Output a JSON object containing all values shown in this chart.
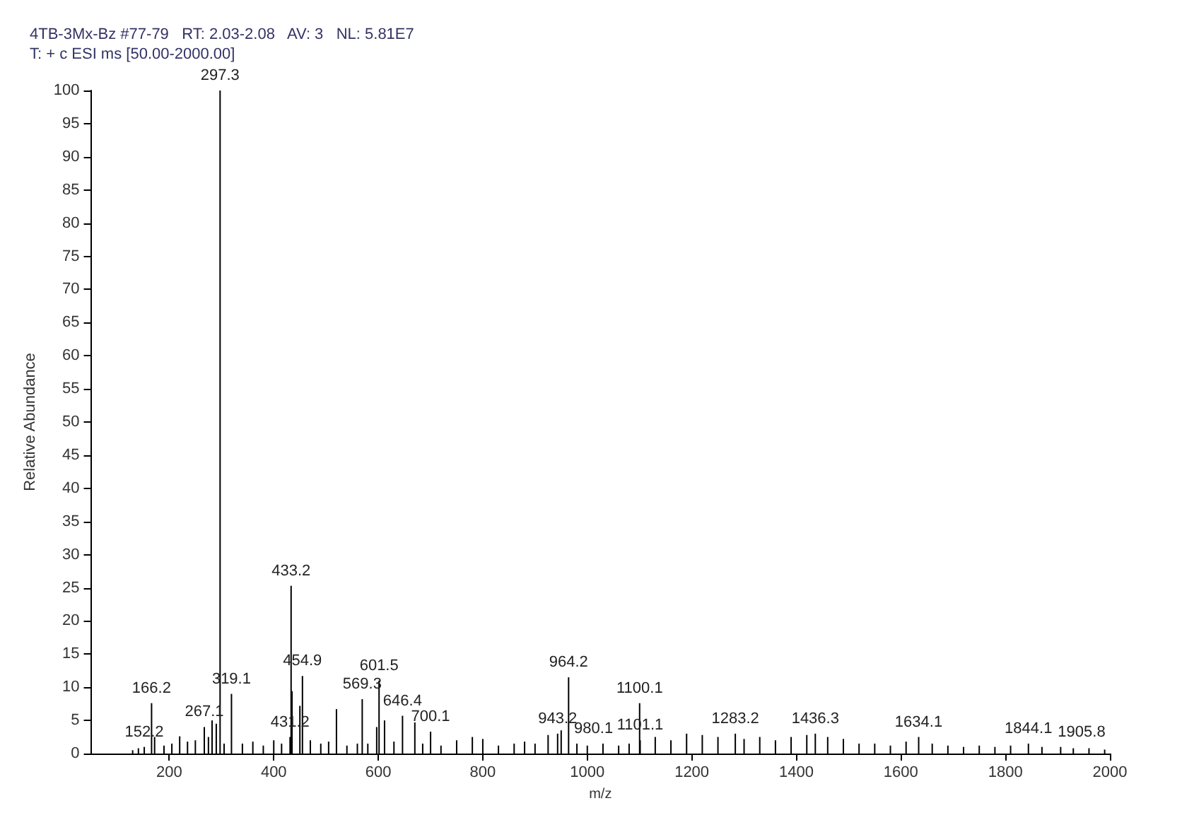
{
  "chart_data": {
    "type": "bar",
    "title": "4TB-3Mx-Bz #77-79   RT: 2.03-2.08   AV: 3   NL: 5.81E7",
    "subtitle": "T: + c ESI ms [50.00-2000.00]",
    "xlabel": "m/z",
    "ylabel": "Relative Abundance",
    "x": [
      130,
      141,
      152.2,
      166.2,
      172,
      190,
      205,
      220,
      235,
      250,
      267.1,
      275,
      282,
      290,
      297.3,
      305,
      319.1,
      340,
      360,
      380,
      400,
      415,
      431.2,
      433.2,
      435,
      450,
      454.9,
      470,
      490,
      505,
      520,
      540,
      560,
      569.3,
      580,
      597,
      601.5,
      612,
      630,
      646.4,
      670,
      685,
      700.1,
      720,
      750,
      780,
      800,
      830,
      860,
      880,
      900,
      925,
      943.2,
      950,
      964.2,
      980.1,
      1000,
      1030,
      1060,
      1080,
      1100.1,
      1101.1,
      1130,
      1160,
      1190,
      1220,
      1250,
      1283.2,
      1300,
      1330,
      1360,
      1390,
      1420,
      1436.3,
      1460,
      1490,
      1520,
      1550,
      1580,
      1610,
      1634.1,
      1660,
      1690,
      1720,
      1750,
      1780,
      1810,
      1844.1,
      1870,
      1905.8,
      1930,
      1960,
      1990
    ],
    "series": [
      {
        "color": "#000000",
        "values": [
          0.5,
          0.8,
          1,
          7.6,
          2.5,
          1.2,
          1.5,
          2.6,
          1.8,
          2,
          4,
          2.5,
          5,
          4.5,
          100,
          1.5,
          9,
          1.5,
          1.8,
          1.2,
          2,
          1.5,
          2.5,
          25.3,
          9.4,
          7.2,
          11.7,
          2,
          1.5,
          1.8,
          6.7,
          1.2,
          1.5,
          8.2,
          1.5,
          4,
          11,
          5,
          1.8,
          5.7,
          4.7,
          1.5,
          3.3,
          1.2,
          2,
          2.5,
          2.2,
          1.2,
          1.5,
          1.8,
          1.5,
          2.8,
          3,
          3.5,
          11.5,
          1.5,
          1.2,
          1.5,
          1.2,
          1.5,
          7.6,
          2,
          2.5,
          2,
          3,
          2.8,
          2.5,
          3,
          2.2,
          2.5,
          2,
          2.5,
          2.8,
          3,
          2.5,
          2.2,
          1.5,
          1.5,
          1.2,
          1.8,
          2.5,
          1.5,
          1.2,
          1,
          1.2,
          1,
          1.2,
          1.5,
          1,
          1,
          0.8,
          0.8,
          0.6
        ]
      }
    ],
    "annotations": [
      {
        "text": "152.2",
        "x": 152.2,
        "y": 1
      },
      {
        "text": "166.2",
        "x": 166.2,
        "y": 7.6
      },
      {
        "text": "267.1",
        "x": 267.1,
        "y": 4
      },
      {
        "text": "297.3",
        "x": 297.3,
        "y": 100
      },
      {
        "text": "319.1",
        "x": 319.1,
        "y": 9
      },
      {
        "text": "431.2",
        "x": 431.2,
        "y": 2.5
      },
      {
        "text": "433.2",
        "x": 433.2,
        "y": 25.3
      },
      {
        "text": "454.9",
        "x": 454.9,
        "y": 11.7
      },
      {
        "text": "569.3",
        "x": 569.3,
        "y": 8.2
      },
      {
        "text": "601.5",
        "x": 601.5,
        "y": 11
      },
      {
        "text": "646.4",
        "x": 646.4,
        "y": 5.7
      },
      {
        "text": "700.1",
        "x": 700.1,
        "y": 3.3
      },
      {
        "text": "943.2",
        "x": 943.2,
        "y": 3
      },
      {
        "text": "964.2",
        "x": 964.2,
        "y": 11.5
      },
      {
        "text": "980.1",
        "x": 980.1,
        "y": 1.5
      },
      {
        "text": "1100.1",
        "x": 1100.1,
        "y": 7.6
      },
      {
        "text": "1101.1",
        "x": 1101.1,
        "y": 2
      },
      {
        "text": "1283.2",
        "x": 1283.2,
        "y": 3
      },
      {
        "text": "1436.3",
        "x": 1436.3,
        "y": 3
      },
      {
        "text": "1634.1",
        "x": 1634.1,
        "y": 2.5
      },
      {
        "text": "1844.1",
        "x": 1844.1,
        "y": 1.5
      },
      {
        "text": "1905.8",
        "x": 1905.8,
        "y": 1
      }
    ],
    "xlim": [
      50,
      2000
    ],
    "xticks": [
      200,
      400,
      600,
      800,
      1000,
      1200,
      1400,
      1600,
      1800,
      2000
    ],
    "ylim": [
      0,
      100
    ],
    "yticks": [
      0,
      5,
      10,
      15,
      20,
      25,
      30,
      35,
      40,
      45,
      50,
      55,
      60,
      65,
      70,
      75,
      80,
      85,
      90,
      95,
      100
    ],
    "grid": false
  }
}
